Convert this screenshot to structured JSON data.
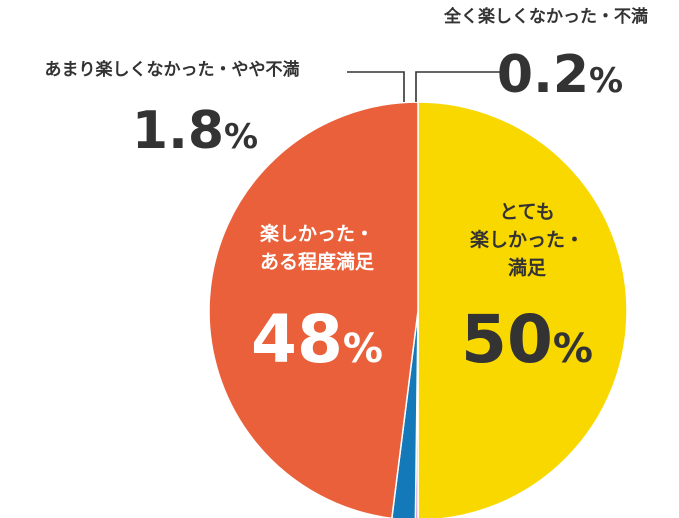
{
  "chart_data": {
    "type": "pie",
    "title": "",
    "legend": "none",
    "unit": "%",
    "slices": [
      {
        "label_lines": [
          "とても",
          "楽しかった・",
          "満足"
        ],
        "value": 50,
        "value_text": "50",
        "color": "#F9D800",
        "text_color": "#333333"
      },
      {
        "label_lines": [
          "全く楽しくなかった・不満"
        ],
        "value": 0.2,
        "value_text": "0.2",
        "color": "#C585C4",
        "text_color": "#333333"
      },
      {
        "label_lines": [
          "あまり楽しくなかった・やや不満"
        ],
        "value": 1.8,
        "value_text": "1.8",
        "color": "#1479B8",
        "text_color": "#333333"
      },
      {
        "label_lines": [
          "楽しかった・",
          "ある程度満足"
        ],
        "value": 48,
        "value_text": "48",
        "color": "#E9603A",
        "text_color": "#ffffff"
      }
    ]
  }
}
